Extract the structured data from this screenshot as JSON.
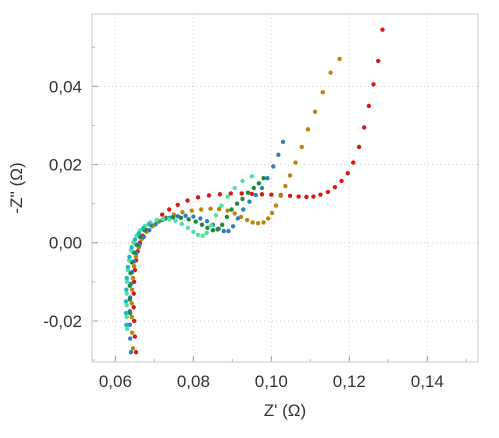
{
  "chart_data": {
    "type": "scatter",
    "xlabel": "Z' (Ω)",
    "ylabel": "-Z'' (Ω)",
    "xlim": [
      0.054,
      0.153
    ],
    "ylim": [
      -0.0305,
      0.0585
    ],
    "xticks": [
      0.06,
      0.08,
      0.1,
      0.12,
      0.14
    ],
    "xtick_labels": [
      "0,06",
      "0,08",
      "0,10",
      "0,12",
      "0,14"
    ],
    "yticks": [
      -0.02,
      0.0,
      0.02,
      0.04
    ],
    "ytick_labels": [
      "-0,02",
      "0,00",
      "0,02",
      "0,04"
    ],
    "grid": true,
    "legend": "none",
    "series": [
      {
        "color": "#d7191c",
        "points": [
          [
            0.0653,
            -0.028
          ],
          [
            0.065,
            -0.024
          ],
          [
            0.0648,
            -0.02
          ],
          [
            0.0647,
            -0.0165
          ],
          [
            0.0647,
            -0.013
          ],
          [
            0.0648,
            -0.01
          ],
          [
            0.065,
            -0.007
          ],
          [
            0.0653,
            -0.0045
          ],
          [
            0.0657,
            -0.0022
          ],
          [
            0.0663,
            0.0
          ],
          [
            0.067,
            0.0018
          ],
          [
            0.068,
            0.0032
          ],
          [
            0.0692,
            0.0045
          ],
          [
            0.0706,
            0.0058
          ],
          [
            0.072,
            0.0072
          ],
          [
            0.0738,
            0.0085
          ],
          [
            0.076,
            0.0097
          ],
          [
            0.0785,
            0.0108
          ],
          [
            0.0812,
            0.0116
          ],
          [
            0.084,
            0.0121
          ],
          [
            0.0868,
            0.0124
          ],
          [
            0.0896,
            0.0126
          ],
          [
            0.0924,
            0.0126
          ],
          [
            0.095,
            0.0125
          ],
          [
            0.0976,
            0.0124
          ],
          [
            0.1,
            0.0123
          ],
          [
            0.1024,
            0.0122
          ],
          [
            0.1048,
            0.012
          ],
          [
            0.107,
            0.0118
          ],
          [
            0.109,
            0.0117
          ],
          [
            0.1108,
            0.0118
          ],
          [
            0.1126,
            0.0123
          ],
          [
            0.1145,
            0.013
          ],
          [
            0.1163,
            0.0142
          ],
          [
            0.118,
            0.0158
          ],
          [
            0.1196,
            0.0178
          ],
          [
            0.121,
            0.0205
          ],
          [
            0.1225,
            0.0245
          ],
          [
            0.1238,
            0.0295
          ],
          [
            0.125,
            0.035
          ],
          [
            0.1262,
            0.0405
          ],
          [
            0.1274,
            0.0465
          ],
          [
            0.1285,
            0.0545
          ]
        ]
      },
      {
        "color": "#b8860b",
        "points": [
          [
            0.0645,
            -0.027
          ],
          [
            0.0643,
            -0.023
          ],
          [
            0.0642,
            -0.019
          ],
          [
            0.0642,
            -0.0155
          ],
          [
            0.0643,
            -0.012
          ],
          [
            0.0645,
            -0.009
          ],
          [
            0.0648,
            -0.006
          ],
          [
            0.0653,
            -0.0035
          ],
          [
            0.066,
            -0.0012
          ],
          [
            0.0668,
            0.001
          ],
          [
            0.068,
            0.0028
          ],
          [
            0.0695,
            0.0042
          ],
          [
            0.0712,
            0.0054
          ],
          [
            0.073,
            0.0064
          ],
          [
            0.075,
            0.0072
          ],
          [
            0.0772,
            0.0078
          ],
          [
            0.0796,
            0.0082
          ],
          [
            0.082,
            0.0085
          ],
          [
            0.0844,
            0.0087
          ],
          [
            0.0866,
            0.0086
          ],
          [
            0.0888,
            0.0082
          ],
          [
            0.0906,
            0.0075
          ],
          [
            0.0922,
            0.0066
          ],
          [
            0.0938,
            0.0058
          ],
          [
            0.0952,
            0.0052
          ],
          [
            0.0966,
            0.005
          ],
          [
            0.098,
            0.0052
          ],
          [
            0.0992,
            0.0062
          ],
          [
            0.1002,
            0.0076
          ],
          [
            0.1012,
            0.0095
          ],
          [
            0.1024,
            0.012
          ],
          [
            0.1036,
            0.0145
          ],
          [
            0.1048,
            0.0172
          ],
          [
            0.1062,
            0.0205
          ],
          [
            0.1078,
            0.0245
          ],
          [
            0.1094,
            0.029
          ],
          [
            0.1112,
            0.0335
          ],
          [
            0.1132,
            0.0385
          ],
          [
            0.1152,
            0.0435
          ],
          [
            0.1175,
            0.047
          ]
        ]
      },
      {
        "color": "#2f7fc1",
        "points": [
          [
            0.064,
            -0.028
          ],
          [
            0.0638,
            -0.0245
          ],
          [
            0.0637,
            -0.021
          ],
          [
            0.0637,
            -0.0175
          ],
          [
            0.0638,
            -0.014
          ],
          [
            0.064,
            -0.0105
          ],
          [
            0.0643,
            -0.0075
          ],
          [
            0.0648,
            -0.0048
          ],
          [
            0.0654,
            -0.0025
          ],
          [
            0.0662,
            -0.0005
          ],
          [
            0.0673,
            0.0015
          ],
          [
            0.0687,
            0.0032
          ],
          [
            0.0703,
            0.0047
          ],
          [
            0.072,
            0.0058
          ],
          [
            0.074,
            0.0064
          ],
          [
            0.076,
            0.0068
          ],
          [
            0.078,
            0.0069
          ],
          [
            0.08,
            0.0067
          ],
          [
            0.0818,
            0.0062
          ],
          [
            0.0835,
            0.0055
          ],
          [
            0.085,
            0.0046
          ],
          [
            0.0865,
            0.0036
          ],
          [
            0.0878,
            0.003
          ],
          [
            0.089,
            0.003
          ],
          [
            0.0902,
            0.0042
          ],
          [
            0.0914,
            0.0062
          ],
          [
            0.0928,
            0.0085
          ],
          [
            0.0944,
            0.0105
          ],
          [
            0.096,
            0.0122
          ],
          [
            0.0976,
            0.014
          ],
          [
            0.099,
            0.0165
          ],
          [
            0.1005,
            0.0195
          ],
          [
            0.1018,
            0.0225
          ],
          [
            0.103,
            0.0258
          ]
        ]
      },
      {
        "color": "#1a8a3c",
        "points": [
          [
            0.0638,
            -0.018
          ],
          [
            0.0637,
            -0.0145
          ],
          [
            0.0637,
            -0.011
          ],
          [
            0.0639,
            -0.0078
          ],
          [
            0.0642,
            -0.005
          ],
          [
            0.0647,
            -0.0025
          ],
          [
            0.0654,
            -0.0005
          ],
          [
            0.0663,
            0.0015
          ],
          [
            0.0675,
            0.0032
          ],
          [
            0.069,
            0.0046
          ],
          [
            0.0708,
            0.0056
          ],
          [
            0.0728,
            0.0062
          ],
          [
            0.0748,
            0.0065
          ],
          [
            0.0768,
            0.0064
          ],
          [
            0.0788,
            0.006
          ],
          [
            0.0806,
            0.0054
          ],
          [
            0.0822,
            0.0046
          ],
          [
            0.0836,
            0.0038
          ],
          [
            0.085,
            0.0032
          ],
          [
            0.0862,
            0.0034
          ],
          [
            0.0874,
            0.0046
          ],
          [
            0.0886,
            0.0066
          ],
          [
            0.0898,
            0.0085
          ],
          [
            0.0912,
            0.01
          ],
          [
            0.0926,
            0.0112
          ],
          [
            0.094,
            0.0128
          ],
          [
            0.0955,
            0.014
          ],
          [
            0.0968,
            0.0152
          ],
          [
            0.098,
            0.0165
          ]
        ]
      },
      {
        "color": "#4be3a0",
        "points": [
          [
            0.063,
            -0.022
          ],
          [
            0.0629,
            -0.019
          ],
          [
            0.0629,
            -0.016
          ],
          [
            0.0629,
            -0.013
          ],
          [
            0.063,
            -0.01
          ],
          [
            0.0632,
            -0.007
          ],
          [
            0.0635,
            -0.0045
          ],
          [
            0.064,
            -0.002
          ],
          [
            0.0646,
            0.0
          ],
          [
            0.0654,
            0.0018
          ],
          [
            0.0664,
            0.0032
          ],
          [
            0.0676,
            0.0043
          ],
          [
            0.069,
            0.0052
          ],
          [
            0.0706,
            0.0058
          ],
          [
            0.0722,
            0.0061
          ],
          [
            0.0738,
            0.006
          ],
          [
            0.0754,
            0.0056
          ],
          [
            0.077,
            0.0048
          ],
          [
            0.0786,
            0.0038
          ],
          [
            0.08,
            0.0028
          ],
          [
            0.0812,
            0.002
          ],
          [
            0.0824,
            0.0018
          ],
          [
            0.0834,
            0.0025
          ],
          [
            0.0846,
            0.0045
          ],
          [
            0.0858,
            0.007
          ],
          [
            0.0872,
            0.0095
          ],
          [
            0.0888,
            0.0118
          ],
          [
            0.0906,
            0.014
          ],
          [
            0.0926,
            0.0158
          ],
          [
            0.095,
            0.017
          ]
        ]
      },
      {
        "color": "#1cb8c4",
        "points": [
          [
            0.0628,
            -0.021
          ],
          [
            0.0627,
            -0.018
          ],
          [
            0.0627,
            -0.015
          ],
          [
            0.0628,
            -0.012
          ],
          [
            0.0629,
            -0.009
          ],
          [
            0.0632,
            -0.0062
          ],
          [
            0.0636,
            -0.0036
          ],
          [
            0.0642,
            -0.0012
          ],
          [
            0.065,
            0.0008
          ],
          [
            0.066,
            0.0024
          ],
          [
            0.0672,
            0.0038
          ],
          [
            0.0686,
            0.0048
          ]
        ]
      }
    ]
  }
}
